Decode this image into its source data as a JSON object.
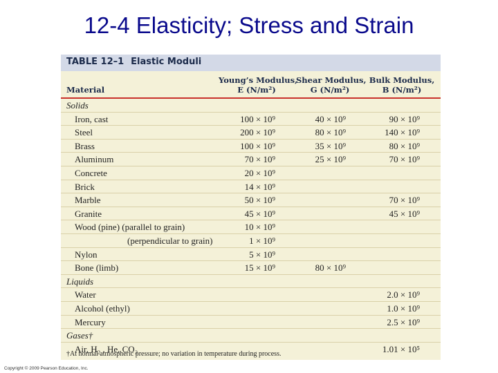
{
  "slide": {
    "title": "12-4 Elasticity; Stress and Strain",
    "copyright": "Copyright © 2009 Pearson Education, Inc."
  },
  "table": {
    "label": "TABLE 12–1",
    "caption": "Elastic Moduli",
    "headers": {
      "material": "Material",
      "young_1": "Young’s Modulus,",
      "young_2": "E (N/m²)",
      "shear_1": "Shear Modulus,",
      "shear_2": "G (N/m²)",
      "bulk_1": "Bulk Modulus,",
      "bulk_2": "B (N/m²)"
    },
    "rows": [
      {
        "section": "Solids"
      },
      {
        "name": "Iron, cast",
        "young": "100 × 10⁹",
        "shear": "40 × 10⁹",
        "bulk": "90 × 10⁹"
      },
      {
        "name": "Steel",
        "young": "200 × 10⁹",
        "shear": "80 × 10⁹",
        "bulk": "140 × 10⁹"
      },
      {
        "name": "Brass",
        "young": "100 × 10⁹",
        "shear": "35 × 10⁹",
        "bulk": "80 × 10⁹"
      },
      {
        "name": "Aluminum",
        "young": "70 × 10⁹",
        "shear": "25 × 10⁹",
        "bulk": "70 × 10⁹"
      },
      {
        "name": "Concrete",
        "young": "20 × 10⁹",
        "shear": "",
        "bulk": ""
      },
      {
        "name": "Brick",
        "young": "14 × 10⁹",
        "shear": "",
        "bulk": ""
      },
      {
        "name": "Marble",
        "young": "50 × 10⁹",
        "shear": "",
        "bulk": "70 × 10⁹"
      },
      {
        "name": "Granite",
        "young": "45 × 10⁹",
        "shear": "",
        "bulk": "45 × 10⁹"
      },
      {
        "name": "Wood (pine) (parallel to grain)",
        "young": "10 × 10⁹",
        "shear": "",
        "bulk": ""
      },
      {
        "name": "(perpendicular to grain)",
        "indent": true,
        "young": "1 × 10⁹",
        "shear": "",
        "bulk": ""
      },
      {
        "name": "Nylon",
        "young": "5 × 10⁹",
        "shear": "",
        "bulk": ""
      },
      {
        "name": "Bone (limb)",
        "young": "15 × 10⁹",
        "shear": "80 × 10⁹",
        "bulk": ""
      },
      {
        "section": "Liquids"
      },
      {
        "name": "Water",
        "young": "",
        "shear": "",
        "bulk": "2.0 × 10⁹"
      },
      {
        "name": "Alcohol (ethyl)",
        "young": "",
        "shear": "",
        "bulk": "1.0 × 10⁹"
      },
      {
        "name": "Mercury",
        "young": "",
        "shear": "",
        "bulk": "2.5 × 10⁹"
      },
      {
        "section": "Gases†"
      },
      {
        "name": "Air, H₂ , He, CO₂",
        "young": "",
        "shear": "",
        "bulk": "1.01 × 10⁵"
      }
    ],
    "footnote": "†At normal atmospheric pressure; no variation in temperature during process."
  }
}
